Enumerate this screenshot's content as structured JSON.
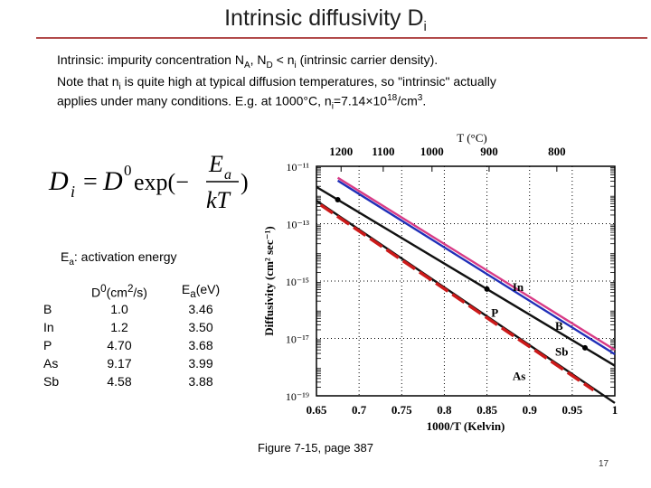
{
  "title": {
    "main": "Intrinsic diffusivity D",
    "sub": "i"
  },
  "lines": {
    "l1": {
      "a": "Intrinsic: impurity concentration N",
      "sub1": "A",
      "b": ", N",
      "sub2": "D",
      "c": " < n",
      "sub3": "i",
      "d": " (intrinsic carrier density)."
    },
    "l2": {
      "a": "Note that n",
      "sub": "i",
      "b": " is quite high at typical diffusion temperatures, so \"intrinsic\" actually"
    },
    "l3": {
      "a": "applies under many conditions. E.g. at 1000°C, n",
      "sub": "i",
      "b": "=7.14×10",
      "sup": "18",
      "c": "/cm",
      "sup2": "3",
      "d": "."
    }
  },
  "equation": {
    "lhs": "D",
    "lhs_sub": "i",
    "eq": "=",
    "d0": "D",
    "d0_sup": "0",
    "exp": "exp(−",
    "num": "E",
    "num_sub": "a",
    "den": "kT",
    "close": ")"
  },
  "activation": {
    "label": "E",
    "sub": "a",
    "text": ": activation energy"
  },
  "table": {
    "header_d0": "D",
    "header_d0_sup": "0",
    "header_d0_unit": "(cm",
    "header_d0_unit_sup": "2",
    "header_d0_unit_end": "/s)",
    "header_ea": "E",
    "header_ea_sub": "a",
    "header_ea_unit": "(eV)",
    "rows": [
      {
        "el": "B",
        "d0": "1.0",
        "ea": "3.46"
      },
      {
        "el": "In",
        "d0": "1.2",
        "ea": "3.50"
      },
      {
        "el": "P",
        "d0": "4.70",
        "ea": "3.68"
      },
      {
        "el": "As",
        "d0": "9.17",
        "ea": "3.99"
      },
      {
        "el": "Sb",
        "d0": "4.58",
        "ea": "3.88"
      }
    ]
  },
  "chart_data": {
    "type": "line",
    "title": "",
    "xlabel": "1000/T (Kelvin)",
    "ylabel": "Diffusivity (cm² sec⁻¹)",
    "top_axis_label": "T (°C)",
    "xlim": [
      0.65,
      1.0
    ],
    "ylim_log10": [
      -19,
      -11
    ],
    "x_ticks": [
      "0.65",
      "0.7",
      "0.75",
      "0.8",
      "0.85",
      "0.9",
      "0.95",
      "1"
    ],
    "x_tick_values": [
      0.65,
      0.7,
      0.75,
      0.8,
      0.85,
      0.9,
      0.95,
      1.0
    ],
    "y_ticks": [
      "10⁻¹¹",
      "10⁻¹³",
      "10⁻¹⁵",
      "10⁻¹⁷",
      "10⁻¹⁹"
    ],
    "y_tick_values": [
      -11,
      -13,
      -15,
      -17,
      -19
    ],
    "top_ticks": [
      "1200",
      "1100",
      "1000",
      "900",
      "800"
    ],
    "top_tick_values": [
      1200,
      1100,
      1000,
      900,
      800
    ],
    "series": [
      {
        "name": "B",
        "color": "#1f2fb8",
        "x": [
          0.675,
          1.0
        ],
        "log10_y": [
          -11.5,
          -17.55
        ]
      },
      {
        "name": "In",
        "color": "#d83b86",
        "x": [
          0.675,
          1.0
        ],
        "log10_y": [
          -11.4,
          -17.4
        ]
      },
      {
        "name": "P",
        "color": "#111111",
        "x": [
          0.65,
          1.0
        ],
        "log10_y": [
          -11.72,
          -17.95
        ],
        "markers": [
          0.675,
          0.85,
          0.965
        ]
      },
      {
        "name": "As",
        "color": "#111111",
        "x": [
          0.65,
          1.0
        ],
        "log10_y": [
          -12.2,
          -19.25
        ]
      },
      {
        "name": "Sb",
        "color": "#cc1a1a",
        "dashed": true,
        "x": [
          0.655,
          0.975
        ],
        "log10_y": [
          -12.35,
          -18.8
        ]
      }
    ],
    "series_labels": [
      {
        "name": "In",
        "x": 0.88,
        "log10_y": -15.35
      },
      {
        "name": "P",
        "x": 0.855,
        "log10_y": -16.25
      },
      {
        "name": "B",
        "x": 0.93,
        "log10_y": -16.7
      },
      {
        "name": "Sb",
        "x": 0.93,
        "log10_y": -17.6
      },
      {
        "name": "As",
        "x": 0.88,
        "log10_y": -18.45
      }
    ]
  },
  "caption": "Figure 7-15, page 387",
  "page_number": "17"
}
